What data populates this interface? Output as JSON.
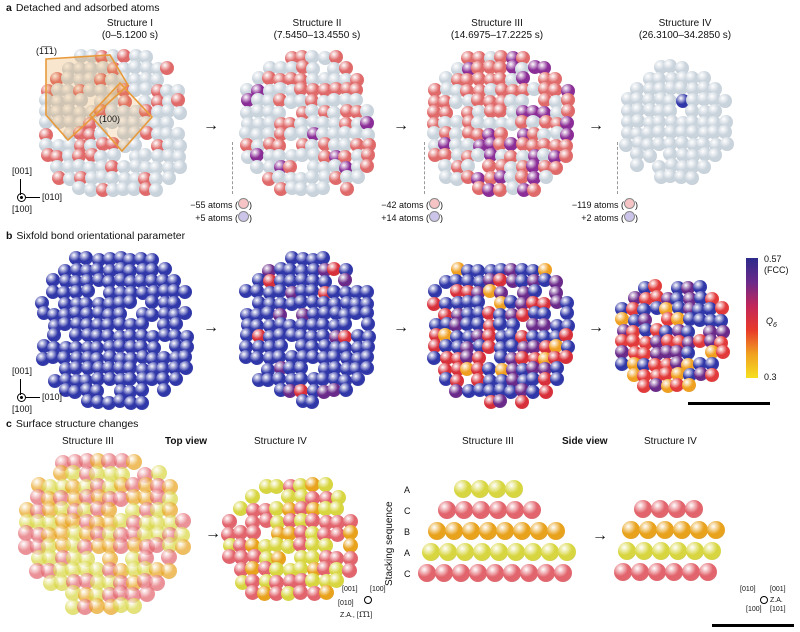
{
  "panel_a": {
    "letter": "a",
    "title": "Detached and adsorbed atoms",
    "structures": [
      {
        "name": "Structure I",
        "time": "(0–5.1200 s)"
      },
      {
        "name": "Structure II",
        "time": "(7.5450–13.4550 s)"
      },
      {
        "name": "Structure III",
        "time": "(14.6975–17.2225 s)"
      },
      {
        "name": "Structure IV",
        "time": "(26.3100–34.2850 s)"
      }
    ],
    "facet_labels": [
      "(1̅1̅1)",
      "(100)"
    ],
    "transitions": [
      {
        "detached": "−55 atoms (",
        "adsorbed": "+5 atoms ("
      },
      {
        "detached": "−42 atoms (",
        "adsorbed": "+14 atoms ("
      },
      {
        "detached": "−119 atoms (",
        "adsorbed": "+2 atoms ("
      }
    ],
    "close_paren": ")",
    "axes": {
      "up": "[001]",
      "right": "[010]",
      "out": "[100]"
    }
  },
  "panel_b": {
    "letter": "b",
    "title": "Sixfold bond orientational parameter",
    "axes": {
      "up": "[001]",
      "right": "[010]",
      "out": "[100]"
    },
    "colorbar": {
      "max": "0.57",
      "max_note": "(FCC)",
      "label": "Q",
      "label_sub": "6",
      "min": "0.3"
    }
  },
  "panel_c": {
    "letter": "c",
    "title": "Surface structure changes",
    "top_view_label": "Top view",
    "side_view_label": "Side view",
    "left_structs": [
      "Structure III",
      "Structure IV"
    ],
    "right_structs": [
      "Structure III",
      "Structure IV"
    ],
    "stacking_label": "Stacking sequence",
    "stacking": [
      "A",
      "C",
      "B",
      "A",
      "C"
    ],
    "top_axes": {
      "a": "[001]",
      "b": "[100]",
      "c": "[010]",
      "za": "Z.A., [1̅1̅1]"
    },
    "side_axes": {
      "a": "[010]",
      "b": "[001]",
      "c": "[100]",
      "za": "Z.A.",
      "zb": "[101]"
    }
  },
  "colors": {
    "atom_grey": "#c9d3dc",
    "atom_red": "#e06a6a",
    "atom_purple": "#8a2d96",
    "q_blue": "#3037a8",
    "layer_A": "#d8d640",
    "layer_C": "#e2646c",
    "layer_B": "#e8a21c",
    "facet_orange": "#e89a3a"
  }
}
